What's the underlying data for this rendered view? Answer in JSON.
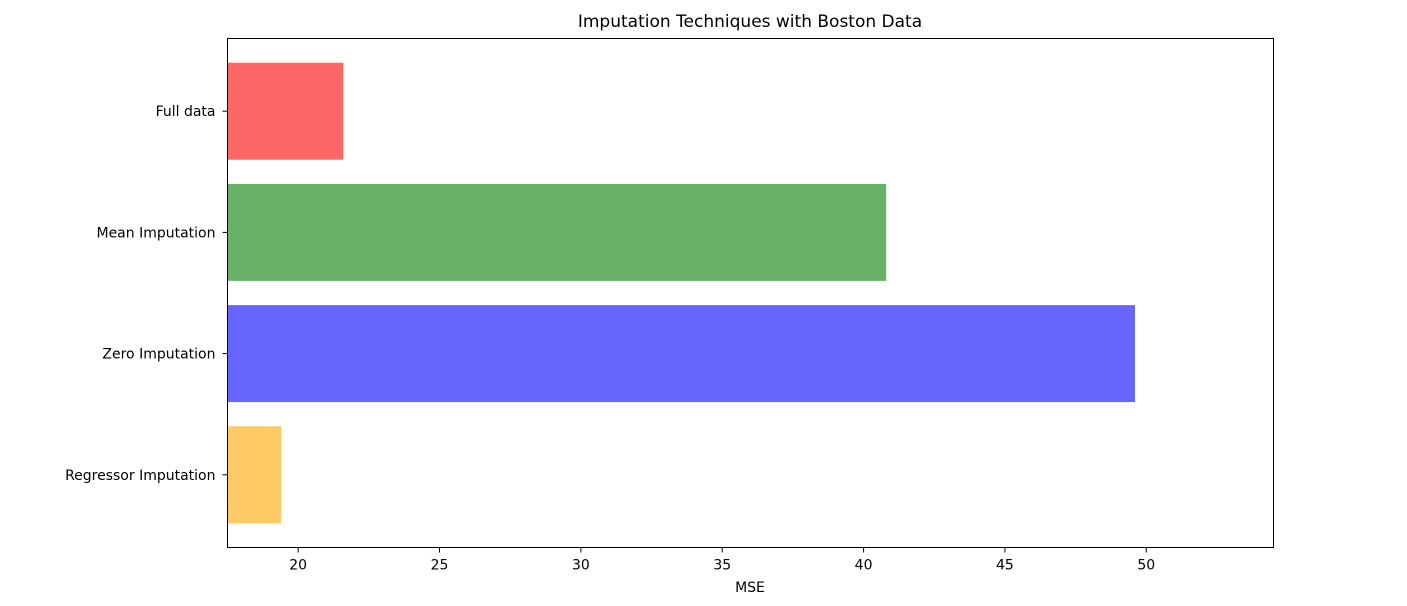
{
  "chart_data": {
    "type": "bar",
    "orientation": "horizontal",
    "title": "Imputation Techniques with Boston Data",
    "xlabel": "MSE",
    "ylabel": "",
    "categories": [
      "Full data",
      "Mean Imputation",
      "Zero Imputation",
      "Regressor Imputation"
    ],
    "values": [
      21.6,
      40.8,
      49.6,
      19.4
    ],
    "colors": [
      "#ff6666",
      "#67b267",
      "#6666ff",
      "#ffc966"
    ],
    "xlim": [
      17.5,
      54.5
    ],
    "xticks": [
      20,
      25,
      30,
      35,
      40,
      45,
      50
    ],
    "grid": false,
    "legend": false
  }
}
